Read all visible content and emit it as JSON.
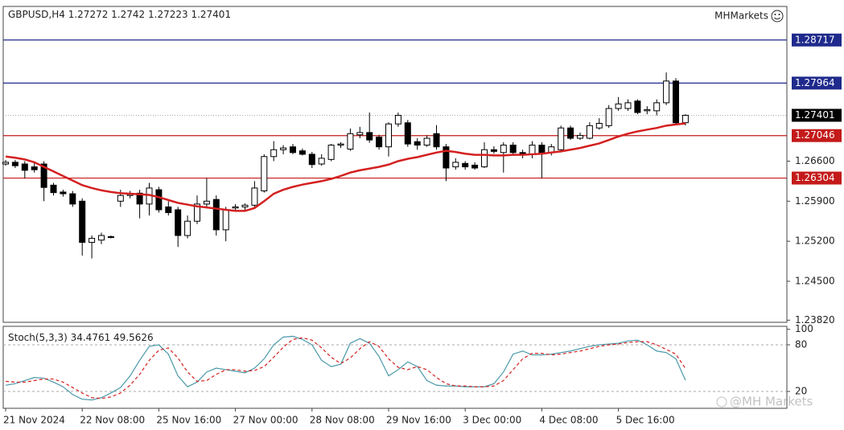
{
  "chart_data": [
    {
      "type": "candlestick",
      "title": "GBPUSD,H4",
      "brand": "MHMarkets",
      "watermark": "@MH Markets",
      "categories": [
        "21 Nov 2024",
        null,
        null,
        null,
        null,
        null,
        null,
        null,
        "22 Nov 08:00",
        null,
        null,
        null,
        null,
        null,
        null,
        null,
        "25 Nov 16:00",
        null,
        null,
        null,
        null,
        null,
        null,
        null,
        "27 Nov 00:00",
        null,
        null,
        null,
        null,
        null,
        null,
        null,
        "28 Nov 08:00",
        null,
        null,
        null,
        null,
        null,
        null,
        null,
        "29 Nov 16:00",
        null,
        null,
        null,
        null,
        null,
        null,
        null,
        "3 Dec 00:00",
        null,
        null,
        null,
        null,
        null,
        null,
        null,
        "4 Dec 08:00",
        null,
        null,
        null,
        null,
        null,
        null,
        null,
        "5 Dec 16:00",
        null,
        null,
        null,
        null,
        null,
        null,
        null
      ],
      "open": [
        1.2655,
        1.2658,
        1.2655,
        1.265,
        1.2655,
        1.2618,
        1.2606,
        1.2603,
        1.259,
        1.2518,
        1.2522,
        1.2527,
        1.259,
        1.26,
        1.2604,
        1.2585,
        1.261,
        1.258,
        1.2575,
        1.253,
        1.2555,
        1.2585,
        1.2593,
        1.254,
        1.2578,
        1.258,
        1.2583,
        1.2608,
        1.2668,
        1.268,
        1.2685,
        1.2678,
        1.2672,
        1.2655,
        1.2663,
        1.2688,
        1.2681,
        1.2706,
        1.271,
        1.2702,
        1.2685,
        1.2725,
        1.2727,
        1.2694,
        1.2688,
        1.2708,
        1.2685,
        1.265,
        1.2656,
        1.2653,
        1.265,
        1.268,
        1.2675,
        1.2688,
        1.2675,
        1.2672,
        1.2688,
        1.2675,
        1.268,
        1.2718,
        1.27,
        1.27,
        1.2718,
        1.2722,
        1.2752,
        1.2752,
        1.2765,
        1.2748,
        1.2748,
        1.2762,
        1.28,
        1.27272
      ],
      "high": [
        1.2662,
        1.2662,
        1.266,
        1.2658,
        1.266,
        1.2622,
        1.261,
        1.2608,
        1.2595,
        1.253,
        1.2535,
        1.253,
        1.261,
        1.2608,
        1.261,
        1.2622,
        1.2615,
        1.259,
        1.258,
        1.2565,
        1.26,
        1.263,
        1.26,
        1.258,
        1.2585,
        1.2586,
        1.2625,
        1.2672,
        1.2695,
        1.2688,
        1.269,
        1.2682,
        1.2676,
        1.2672,
        1.269,
        1.2693,
        1.2717,
        1.272,
        1.2745,
        1.2706,
        1.2728,
        1.2745,
        1.2732,
        1.27,
        1.2705,
        1.2723,
        1.269,
        1.2665,
        1.266,
        1.2658,
        1.2693,
        1.2686,
        1.2693,
        1.2693,
        1.268,
        1.2695,
        1.2693,
        1.269,
        1.2722,
        1.2722,
        1.271,
        1.2728,
        1.2735,
        1.2758,
        1.2772,
        1.2768,
        1.2768,
        1.2756,
        1.2768,
        1.2815,
        1.2805,
        1.2742
      ],
      "low": [
        1.2652,
        1.2648,
        1.263,
        1.264,
        1.259,
        1.26,
        1.2598,
        1.258,
        1.2495,
        1.249,
        1.2515,
        1.2525,
        1.258,
        1.2595,
        1.256,
        1.2565,
        1.257,
        1.2565,
        1.251,
        1.2525,
        1.255,
        1.258,
        1.253,
        1.252,
        1.2573,
        1.2575,
        1.2578,
        1.2605,
        1.266,
        1.2672,
        1.2672,
        1.267,
        1.2648,
        1.2652,
        1.266,
        1.2683,
        1.2678,
        1.27,
        1.2692,
        1.268,
        1.2668,
        1.272,
        1.2685,
        1.268,
        1.2685,
        1.268,
        1.2625,
        1.2645,
        1.2645,
        1.2645,
        1.2648,
        1.2673,
        1.264,
        1.267,
        1.2665,
        1.2665,
        1.263,
        1.267,
        1.2676,
        1.2697,
        1.2697,
        1.2698,
        1.2715,
        1.2718,
        1.2748,
        1.2748,
        1.2742,
        1.2742,
        1.274,
        1.2758,
        1.2725,
        1.27223
      ],
      "close": [
        1.2658,
        1.2652,
        1.2644,
        1.2645,
        1.2614,
        1.2605,
        1.2603,
        1.2585,
        1.2518,
        1.2525,
        1.253,
        1.2528,
        1.26,
        1.2602,
        1.2585,
        1.2613,
        1.2575,
        1.257,
        1.253,
        1.2555,
        1.2585,
        1.259,
        1.254,
        1.2575,
        1.258,
        1.2583,
        1.2613,
        1.2668,
        1.268,
        1.2683,
        1.2675,
        1.2672,
        1.2654,
        1.2665,
        1.2688,
        1.269,
        1.2708,
        1.271,
        1.2697,
        1.2685,
        1.2725,
        1.274,
        1.269,
        1.2688,
        1.27,
        1.2685,
        1.2648,
        1.2658,
        1.265,
        1.2648,
        1.268,
        1.2677,
        1.2688,
        1.2675,
        1.2672,
        1.2688,
        1.2675,
        1.2685,
        1.2718,
        1.27,
        1.2705,
        1.2722,
        1.2726,
        1.2752,
        1.276,
        1.2762,
        1.2745,
        1.275,
        1.2762,
        1.28,
        1.2727,
        1.27401
      ],
      "overlay": {
        "color": "#d42020",
        "values": [
          1.2668,
          1.2666,
          1.2663,
          1.2658,
          1.265,
          1.2642,
          1.2634,
          1.2626,
          1.2618,
          1.2613,
          1.2609,
          1.2606,
          1.2604,
          1.2603,
          1.2602,
          1.2601,
          1.2597,
          1.2592,
          1.2587,
          1.2584,
          1.2581,
          1.2579,
          1.2577,
          1.2575,
          1.2573,
          1.2573,
          1.2578,
          1.259,
          1.2603,
          1.261,
          1.2615,
          1.2619,
          1.2622,
          1.2625,
          1.2629,
          1.2634,
          1.264,
          1.2644,
          1.2647,
          1.265,
          1.2654,
          1.266,
          1.2664,
          1.2667,
          1.2671,
          1.2675,
          1.2678,
          1.2676,
          1.2673,
          1.2671,
          1.2671,
          1.267,
          1.267,
          1.2671,
          1.2671,
          1.2672,
          1.2673,
          1.2675,
          1.2677,
          1.268,
          1.2683,
          1.2687,
          1.2691,
          1.2697,
          1.2703,
          1.2708,
          1.2712,
          1.2715,
          1.2718,
          1.2722,
          1.2724,
          1.2726
        ]
      },
      "levels": [
        {
          "value": 1.28717,
          "color": "#1f2a8c"
        },
        {
          "value": 1.27964,
          "color": "#1f2a8c"
        },
        {
          "value": 1.27046,
          "color": "#c41a1a"
        },
        {
          "value": 1.26304,
          "color": "#c41a1a"
        }
      ],
      "ylim": [
        1.23783,
        1.29304
      ],
      "yticks": [
        {
          "value": 1.2382,
          "label": "1.23820"
        },
        {
          "value": 1.245,
          "label": "1.24500"
        },
        {
          "value": 1.252,
          "label": "1.25200"
        },
        {
          "value": 1.259,
          "label": "1.25900"
        },
        {
          "value": 1.266,
          "label": "1.26600"
        }
      ]
    },
    {
      "type": "line",
      "title": "Stoch(5,3,3)",
      "series": [
        {
          "color": "#4a98a8",
          "values": [
            28,
            30,
            34,
            38,
            37,
            32,
            26,
            16,
            10,
            9,
            12,
            18,
            25,
            40,
            60,
            78,
            80,
            68,
            40,
            26,
            32,
            45,
            50,
            48,
            46,
            44,
            50,
            62,
            80,
            90,
            91,
            87,
            80,
            60,
            52,
            55,
            82,
            88,
            82,
            65,
            40,
            48,
            58,
            52,
            34,
            28,
            27,
            27,
            26,
            26,
            26,
            30,
            45,
            68,
            72,
            67,
            67,
            68,
            70,
            72,
            75,
            78,
            80,
            81,
            82,
            85,
            86,
            80,
            72,
            70,
            62,
            34.4761
          ]
        },
        {
          "color": "#d42020",
          "dashed": true,
          "values": [
            33,
            32,
            32,
            34,
            36,
            36,
            32,
            25,
            18,
            12,
            11,
            13,
            18,
            28,
            42,
            60,
            73,
            76,
            63,
            45,
            33,
            34,
            42,
            48,
            48,
            46,
            47,
            52,
            64,
            77,
            87,
            89,
            86,
            76,
            64,
            56,
            63,
            75,
            84,
            78,
            62,
            51,
            48,
            52,
            48,
            38,
            30,
            27,
            27,
            26,
            26,
            27,
            34,
            48,
            62,
            69,
            69,
            67,
            68,
            70,
            72,
            75,
            78,
            80,
            81,
            83,
            84,
            84,
            80,
            74,
            68,
            49.5626
          ]
        }
      ],
      "ylim": [
        -1.7,
        103.8
      ],
      "yticks": [
        20,
        80,
        100
      ],
      "dashed_levels": [
        20,
        80
      ]
    }
  ]
}
